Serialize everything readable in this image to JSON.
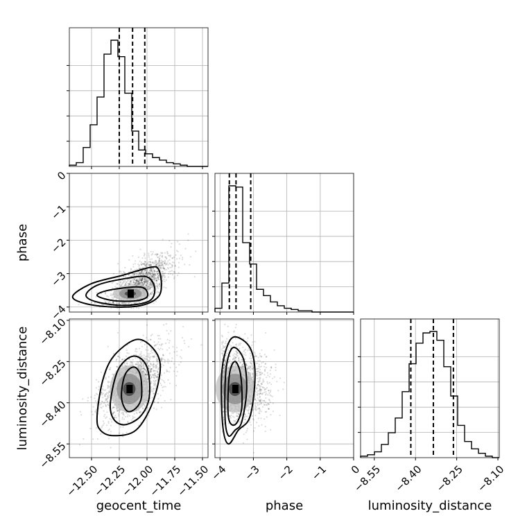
{
  "chart_data": {
    "type": "corner",
    "parameters": [
      {
        "name": "geocent_time",
        "label": "geocent_time",
        "range": [
          -12.7,
          -11.45
        ],
        "ticks": [
          -12.5,
          -12.25,
          -12.0,
          -11.75,
          -11.5
        ],
        "tick_labels": [
          "−12.50",
          "−12.25",
          "−12.00",
          "−11.75",
          "−11.50"
        ]
      },
      {
        "name": "phase",
        "label": "phase",
        "range": [
          -4.15,
          0.0
        ],
        "ticks": [
          -4,
          -3,
          -2,
          -1,
          0
        ],
        "tick_labels": [
          "−4",
          "−3",
          "−2",
          "−1",
          "0"
        ]
      },
      {
        "name": "luminosity_distance",
        "label": "luminosity_distance",
        "range": [
          -8.6,
          -8.095
        ],
        "ticks": [
          -8.55,
          -8.4,
          -8.25,
          -8.1
        ],
        "tick_labels": [
          "−8.55",
          "−8.40",
          "−8.25",
          "−8.10"
        ]
      }
    ],
    "histograms": [
      {
        "param": "geocent_time",
        "bins": 20,
        "counts": [
          1,
          3,
          15,
          33,
          55,
          89,
          100,
          87,
          58,
          28,
          13,
          10,
          7,
          5,
          3,
          2,
          1,
          0,
          0,
          0
        ],
        "quantiles": [
          -12.25,
          -12.13,
          -12.02
        ]
      },
      {
        "param": "phase",
        "bins": 20,
        "counts": [
          3,
          23,
          100,
          99,
          55,
          38,
          18,
          13,
          8,
          5,
          3,
          2,
          1,
          1,
          0,
          0,
          0,
          0,
          0,
          0
        ],
        "quantiles": [
          -3.72,
          -3.52,
          -3.08
        ]
      },
      {
        "param": "luminosity_distance",
        "bins": 20,
        "counts": [
          1,
          2,
          4,
          9,
          17,
          27,
          45,
          64,
          78,
          85,
          86,
          80,
          62,
          42,
          22,
          11,
          6,
          3,
          1,
          0
        ],
        "quantiles": [
          -8.417,
          -8.335,
          -8.262
        ]
      }
    ],
    "pairs": [
      {
        "x": "geocent_time",
        "y": "phase",
        "mean": [
          -12.05,
          -3.25
        ],
        "sd": [
          0.14,
          0.42
        ],
        "rho": 0.65,
        "peak": [
          -12.15,
          -3.6
        ],
        "contours": [
          [
            [
              -12.45,
              -3.65
            ],
            [
              -12.35,
              -3.5
            ],
            [
              -12.12,
              -3.4
            ],
            [
              -12.02,
              -3.45
            ],
            [
              -12.0,
              -3.7
            ],
            [
              -12.12,
              -3.82
            ],
            [
              -12.32,
              -3.8
            ]
          ],
          [
            [
              -12.55,
              -3.65
            ],
            [
              -12.45,
              -3.35
            ],
            [
              -12.2,
              -3.15
            ],
            [
              -12.0,
              -3.1
            ],
            [
              -11.93,
              -3.45
            ],
            [
              -11.98,
              -3.82
            ],
            [
              -12.2,
              -3.95
            ],
            [
              -12.45,
              -3.85
            ]
          ],
          [
            [
              -12.67,
              -3.68
            ],
            [
              -12.5,
              -3.3
            ],
            [
              -12.22,
              -3.05
            ],
            [
              -11.98,
              -2.82
            ],
            [
              -11.9,
              -2.85
            ],
            [
              -11.87,
              -3.3
            ],
            [
              -11.9,
              -3.7
            ],
            [
              -12.05,
              -3.95
            ],
            [
              -12.3,
              -4.0
            ],
            [
              -12.55,
              -3.9
            ]
          ]
        ]
      },
      {
        "x": "geocent_time",
        "y": "luminosity_distance",
        "mean": [
          -12.12,
          -8.33
        ],
        "sd": [
          0.16,
          0.07
        ],
        "rho": 0.55,
        "peak": [
          -12.16,
          -8.35
        ],
        "contours": [
          [
            [
              -12.23,
              -8.38
            ],
            [
              -12.2,
              -8.3
            ],
            [
              -12.12,
              -8.27
            ],
            [
              -12.06,
              -8.3
            ],
            [
              -12.05,
              -8.38
            ],
            [
              -12.1,
              -8.42
            ],
            [
              -12.18,
              -8.43
            ]
          ],
          [
            [
              -12.33,
              -8.4
            ],
            [
              -12.26,
              -8.28
            ],
            [
              -12.12,
              -8.23
            ],
            [
              -12.0,
              -8.27
            ],
            [
              -11.98,
              -8.38
            ],
            [
              -12.06,
              -8.45
            ],
            [
              -12.2,
              -8.48
            ],
            [
              -12.3,
              -8.46
            ]
          ],
          [
            [
              -12.45,
              -8.45
            ],
            [
              -12.4,
              -8.32
            ],
            [
              -12.3,
              -8.23
            ],
            [
              -12.1,
              -8.17
            ],
            [
              -11.95,
              -8.2
            ],
            [
              -11.88,
              -8.27
            ],
            [
              -11.95,
              -8.4
            ],
            [
              -12.1,
              -8.5
            ],
            [
              -12.3,
              -8.52
            ],
            [
              -12.42,
              -8.5
            ]
          ]
        ]
      },
      {
        "x": "phase",
        "y": "luminosity_distance",
        "mean": [
          -3.45,
          -8.33
        ],
        "sd": [
          0.45,
          0.07
        ],
        "rho": -0.1,
        "peak": [
          -3.55,
          -8.35
        ],
        "contours": [
          [
            [
              -3.75,
              -8.45
            ],
            [
              -3.72,
              -8.3
            ],
            [
              -3.55,
              -8.25
            ],
            [
              -3.38,
              -8.3
            ],
            [
              -3.35,
              -8.42
            ],
            [
              -3.55,
              -8.48
            ]
          ],
          [
            [
              -3.85,
              -8.45
            ],
            [
              -3.82,
              -8.28
            ],
            [
              -3.62,
              -8.2
            ],
            [
              -3.3,
              -8.24
            ],
            [
              -3.2,
              -8.35
            ],
            [
              -3.35,
              -8.47
            ],
            [
              -3.55,
              -8.5
            ],
            [
              -3.75,
              -8.52
            ]
          ],
          [
            [
              -3.92,
              -8.48
            ],
            [
              -3.95,
              -8.3
            ],
            [
              -3.8,
              -8.2
            ],
            [
              -3.55,
              -8.16
            ],
            [
              -3.1,
              -8.2
            ],
            [
              -2.95,
              -8.3
            ],
            [
              -3.1,
              -8.45
            ],
            [
              -3.45,
              -8.5
            ],
            [
              -3.75,
              -8.55
            ]
          ]
        ]
      }
    ],
    "grid": true
  }
}
